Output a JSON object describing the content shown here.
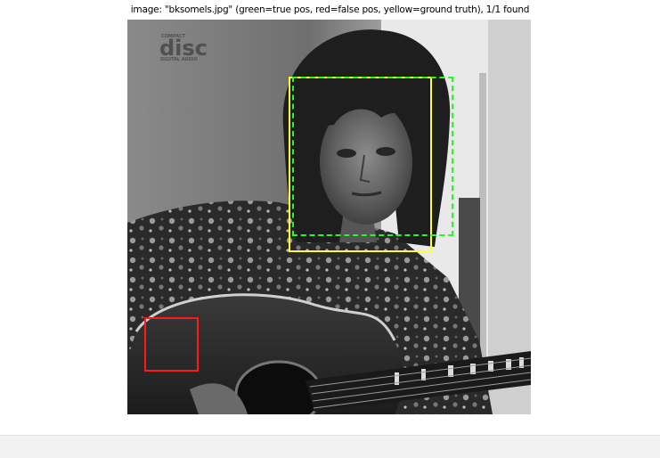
{
  "figure": {
    "title": "image: \"bksomels.jpg\" (green=true pos, red=false pos, yellow=ground truth), 1/1 found"
  },
  "photo": {
    "logo": {
      "top_text": "COMPACT",
      "main_text": "disc",
      "bottom_text": "DIGITAL AUDIO"
    }
  },
  "detections": {
    "ground_truth_color": "#ffff2e",
    "true_positive_color": "#1eff1e",
    "false_positive_color": "#ff1a1a"
  }
}
